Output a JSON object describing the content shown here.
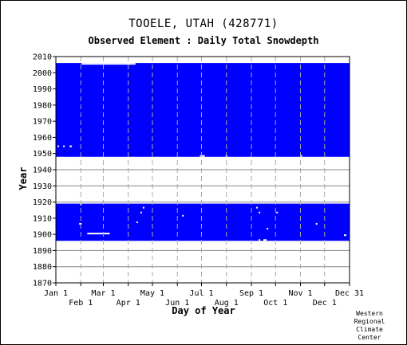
{
  "title": "TOOELE, UTAH   (428771)",
  "subtitle": "Observed Element : Daily Total Snowdepth",
  "credit": [
    "Western",
    "Regional",
    "Climate",
    "Center"
  ],
  "chart_data": {
    "type": "heatmap",
    "title": "TOOELE, UTAH   (428771)",
    "subtitle": "Observed Element : Daily Total Snowdepth",
    "xlabel": "Day of Year",
    "ylabel": "Year",
    "xlim": [
      1,
      366
    ],
    "ylim": [
      1870,
      2010
    ],
    "y_ticks": [
      1870,
      1880,
      1890,
      1900,
      1910,
      1920,
      1930,
      1940,
      1950,
      1960,
      1970,
      1980,
      1990,
      2000,
      2010
    ],
    "x_ticks": [
      {
        "label": "Jan 1",
        "day": 1,
        "row": 0
      },
      {
        "label": "Feb 1",
        "day": 32,
        "row": 1
      },
      {
        "label": "Mar 1",
        "day": 60,
        "row": 0
      },
      {
        "label": "Apr 1",
        "day": 91,
        "row": 1
      },
      {
        "label": "May 1",
        "day": 121,
        "row": 0
      },
      {
        "label": "Jun 1",
        "day": 152,
        "row": 1
      },
      {
        "label": "Jul 1",
        "day": 182,
        "row": 0
      },
      {
        "label": "Aug 1",
        "day": 213,
        "row": 1
      },
      {
        "label": "Sep 1",
        "day": 244,
        "row": 0
      },
      {
        "label": "Oct 1",
        "day": 274,
        "row": 1
      },
      {
        "label": "Nov 1",
        "day": 305,
        "row": 0
      },
      {
        "label": "Dec 1",
        "day": 335,
        "row": 1
      },
      {
        "label": "Dec 31",
        "day": 366,
        "row": 0
      }
    ],
    "grid": true,
    "color_observed": "#0000ff",
    "color_missing": "#ffffff",
    "observed_periods": [
      {
        "start_year": 1896,
        "end_year": 1918
      },
      {
        "start_year": 1948,
        "end_year": 2005
      }
    ],
    "missing_days": [
      {
        "year": 2005,
        "start_day": 33,
        "end_day": 100
      },
      {
        "year": 1954,
        "start_day": 3,
        "end_day": 5
      },
      {
        "year": 1954,
        "start_day": 10,
        "end_day": 12
      },
      {
        "year": 1954,
        "start_day": 18,
        "end_day": 21
      },
      {
        "year": 1948,
        "start_day": 180,
        "end_day": 186
      },
      {
        "year": 1948,
        "start_day": 212,
        "end_day": 214
      },
      {
        "year": 1948,
        "start_day": 305,
        "end_day": 307
      },
      {
        "year": 1918,
        "start_day": 31,
        "end_day": 33
      },
      {
        "year": 1916,
        "start_day": 109,
        "end_day": 111
      },
      {
        "year": 1916,
        "start_day": 250,
        "end_day": 252
      },
      {
        "year": 1913,
        "start_day": 106,
        "end_day": 108
      },
      {
        "year": 1913,
        "start_day": 253,
        "end_day": 255
      },
      {
        "year": 1913,
        "start_day": 275,
        "end_day": 277
      },
      {
        "year": 1911,
        "start_day": 158,
        "end_day": 160
      },
      {
        "year": 1907,
        "start_day": 101,
        "end_day": 103
      },
      {
        "year": 1906,
        "start_day": 30,
        "end_day": 33
      },
      {
        "year": 1906,
        "start_day": 324,
        "end_day": 326
      },
      {
        "year": 1903,
        "start_day": 263,
        "end_day": 265
      },
      {
        "year": 1900,
        "start_day": 40,
        "end_day": 68
      },
      {
        "year": 1899,
        "start_day": 359,
        "end_day": 362
      },
      {
        "year": 1896,
        "start_day": 253,
        "end_day": 255
      },
      {
        "year": 1896,
        "start_day": 259,
        "end_day": 263
      }
    ],
    "dashed_verticals_days": [
      32,
      60,
      91,
      121,
      152,
      182,
      213,
      244,
      274,
      305,
      335
    ]
  }
}
